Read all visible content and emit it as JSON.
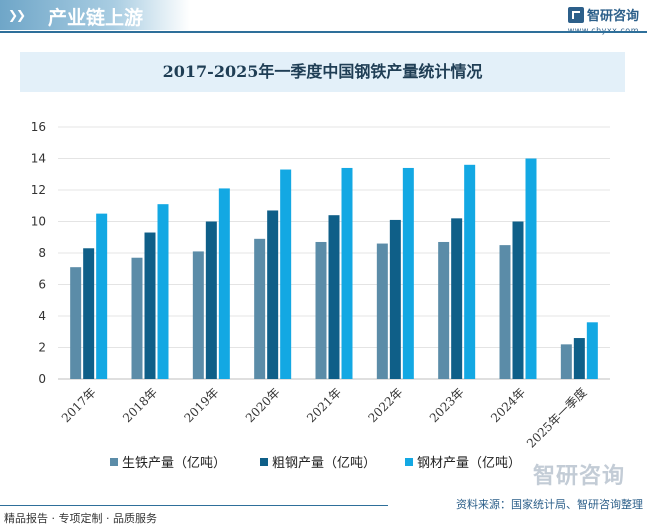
{
  "header": {
    "title": "产业链上游",
    "brand_name": "智研咨询",
    "brand_url": "www.chyxx.com"
  },
  "footer": {
    "left_text": "精品报告 · 专项定制 · 品质服务",
    "source": "资料来源：国家统计局、智研咨询整理",
    "watermark": "智研咨询"
  },
  "colors": {
    "pig_iron": "#5b8ca8",
    "crude_steel": "#0f5f88",
    "steel": "#13a8e3",
    "title_bg": "#e3f0f9",
    "accent": "#2e6f9a"
  },
  "chart_data": {
    "type": "bar",
    "title": "2017-2025年一季度中国钢铁产量统计情况",
    "categories": [
      "2017年",
      "2018年",
      "2019年",
      "2020年",
      "2021年",
      "2022年",
      "2023年",
      "2024年",
      "2025年一季度"
    ],
    "series": [
      {
        "name": "生铁产量（亿吨）",
        "values": [
          7.1,
          7.7,
          8.1,
          8.9,
          8.7,
          8.6,
          8.7,
          8.5,
          2.2
        ]
      },
      {
        "name": "粗钢产量（亿吨）",
        "values": [
          8.3,
          9.3,
          10.0,
          10.7,
          10.4,
          10.1,
          10.2,
          10.0,
          2.6
        ]
      },
      {
        "name": "钢材产量（亿吨）",
        "values": [
          10.5,
          11.1,
          12.1,
          13.3,
          13.4,
          13.4,
          13.6,
          14.0,
          3.6
        ]
      }
    ],
    "yticks": [
      0,
      2,
      4,
      6,
      8,
      10,
      12,
      14,
      16
    ],
    "ylim": [
      0,
      16
    ],
    "xlabel": "",
    "ylabel": "",
    "legend_position": "bottom"
  }
}
